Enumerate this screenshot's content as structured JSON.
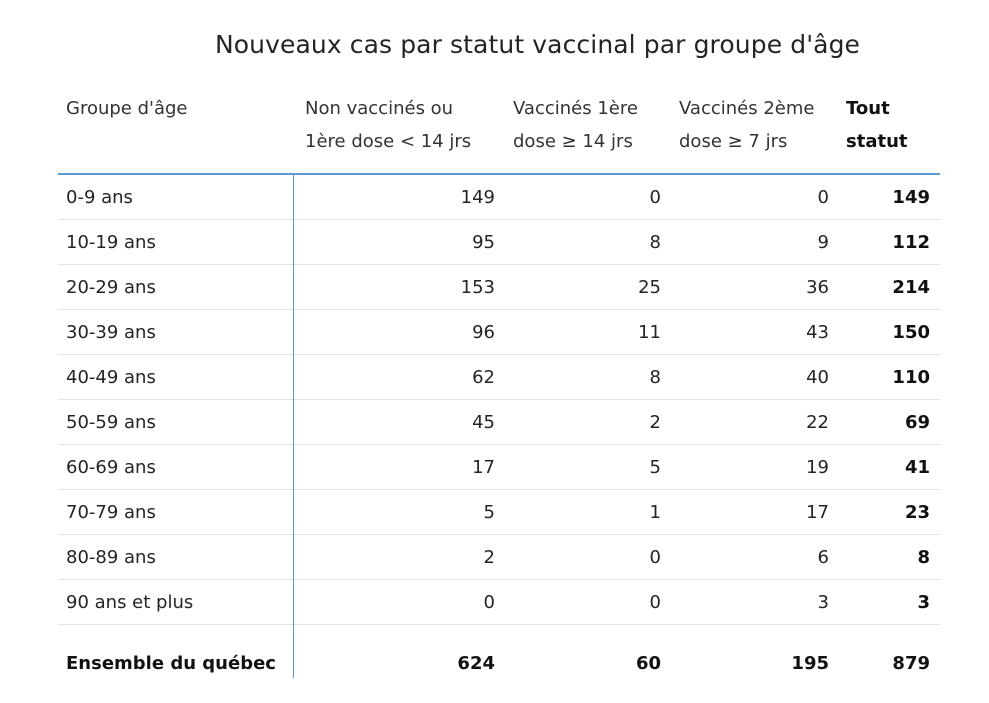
{
  "chart_data": {
    "type": "table",
    "title": "Nouveaux cas par statut vaccinal par groupe d'âge",
    "columns": [
      {
        "key": "group",
        "lines": [
          "Groupe d'âge"
        ]
      },
      {
        "key": "non_vac",
        "lines": [
          "Non vaccinés ou",
          "1ère dose < 14 jrs"
        ]
      },
      {
        "key": "dose1",
        "lines": [
          "Vaccinés 1ère",
          "dose ≥ 14 jrs"
        ]
      },
      {
        "key": "dose2",
        "lines": [
          "Vaccinés 2ème",
          "dose ≥ 7 jrs"
        ]
      },
      {
        "key": "total",
        "lines": [
          "Tout",
          "statut"
        ]
      }
    ],
    "rows": [
      {
        "group": "0-9 ans",
        "non_vac": 149,
        "dose1": 0,
        "dose2": 0,
        "total": 149
      },
      {
        "group": "10-19 ans",
        "non_vac": 95,
        "dose1": 8,
        "dose2": 9,
        "total": 112
      },
      {
        "group": "20-29 ans",
        "non_vac": 153,
        "dose1": 25,
        "dose2": 36,
        "total": 214
      },
      {
        "group": "30-39 ans",
        "non_vac": 96,
        "dose1": 11,
        "dose2": 43,
        "total": 150
      },
      {
        "group": "40-49 ans",
        "non_vac": 62,
        "dose1": 8,
        "dose2": 40,
        "total": 110
      },
      {
        "group": "50-59 ans",
        "non_vac": 45,
        "dose1": 2,
        "dose2": 22,
        "total": 69
      },
      {
        "group": "60-69 ans",
        "non_vac": 17,
        "dose1": 5,
        "dose2": 19,
        "total": 41
      },
      {
        "group": "70-79 ans",
        "non_vac": 5,
        "dose1": 1,
        "dose2": 17,
        "total": 23
      },
      {
        "group": "80-89 ans",
        "non_vac": 2,
        "dose1": 0,
        "dose2": 6,
        "total": 8
      },
      {
        "group": "90 ans et plus",
        "non_vac": 0,
        "dose1": 0,
        "dose2": 3,
        "total": 3
      }
    ],
    "totals": {
      "group": "Ensemble du québec",
      "non_vac": 624,
      "dose1": 60,
      "dose2": 195,
      "total": 879
    },
    "accent_color": "#5b9bd5"
  }
}
